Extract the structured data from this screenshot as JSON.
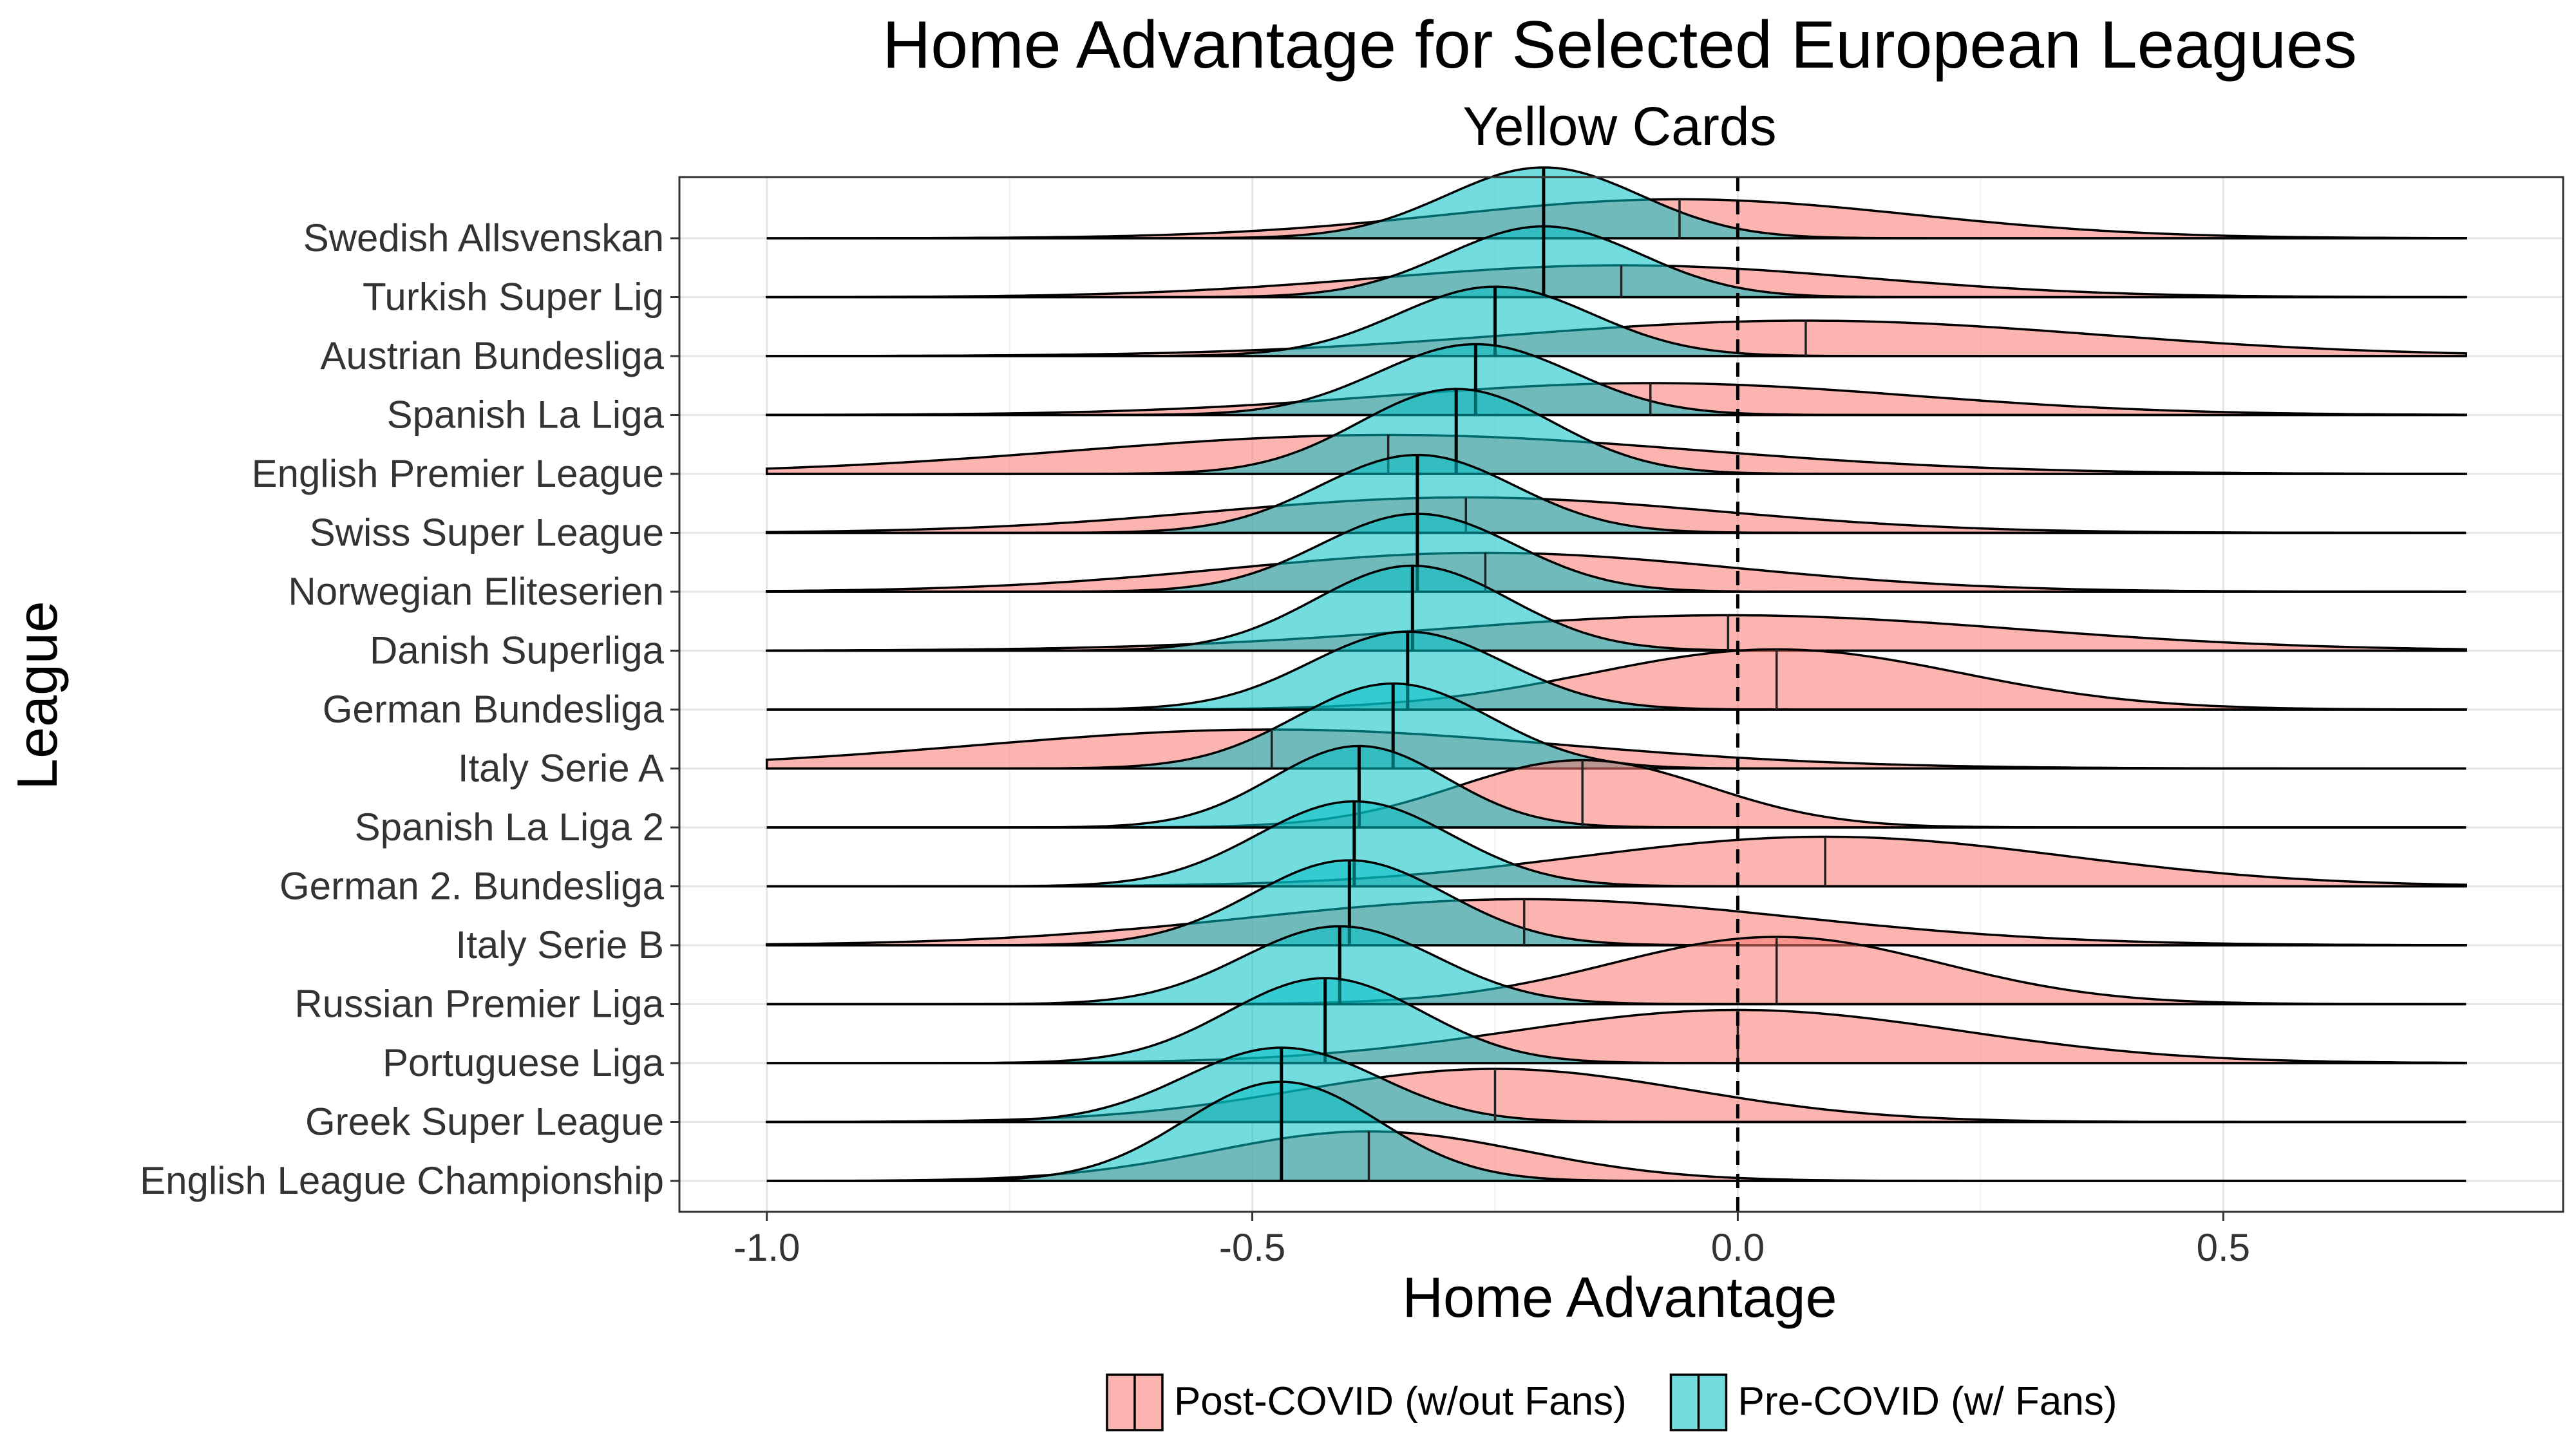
{
  "chart_data": {
    "type": "ridgeline",
    "title": "Home Advantage for Selected European Leagues",
    "subtitle": "Yellow Cards",
    "xlabel": "Home Advantage",
    "ylabel": "League",
    "xlim": [
      -1.09,
      0.85
    ],
    "x_ticks": [
      {
        "value": -1.0,
        "label": "-1.0"
      },
      {
        "value": -0.5,
        "label": "-0.5"
      },
      {
        "value": 0.0,
        "label": "0.0"
      },
      {
        "value": 0.5,
        "label": "0.5"
      }
    ],
    "reference_line": 0.0,
    "grid": true,
    "legend_position": "bottom",
    "series_styles": [
      {
        "key": "post",
        "name": "Post-COVID (w/out Fans)",
        "color": "#F8766D"
      },
      {
        "key": "pre",
        "name": "Pre-COVID (w/ Fans)",
        "color": "#00BFC4"
      }
    ],
    "leagues": [
      {
        "name": "Swedish Allsvenskan",
        "pre": {
          "mean": -0.2,
          "sd": 0.1,
          "peak": 1.0
        },
        "post": {
          "mean": -0.06,
          "sd": 0.24,
          "peak": 0.55
        }
      },
      {
        "name": "Turkish Super Lig",
        "pre": {
          "mean": -0.2,
          "sd": 0.1,
          "peak": 1.0
        },
        "post": {
          "mean": -0.12,
          "sd": 0.25,
          "peak": 0.45
        }
      },
      {
        "name": "Austrian Bundesliga",
        "pre": {
          "mean": -0.25,
          "sd": 0.1,
          "peak": 0.98
        },
        "post": {
          "mean": 0.07,
          "sd": 0.3,
          "peak": 0.5
        }
      },
      {
        "name": "Spanish La Liga",
        "pre": {
          "mean": -0.27,
          "sd": 0.1,
          "peak": 1.0
        },
        "post": {
          "mean": -0.09,
          "sd": 0.27,
          "peak": 0.45
        }
      },
      {
        "name": "English Premier League",
        "pre": {
          "mean": -0.29,
          "sd": 0.1,
          "peak": 1.2
        },
        "post": {
          "mean": -0.36,
          "sd": 0.32,
          "peak": 0.55
        }
      },
      {
        "name": "Swiss Super League",
        "pre": {
          "mean": -0.33,
          "sd": 0.1,
          "peak": 1.1
        },
        "post": {
          "mean": -0.28,
          "sd": 0.26,
          "peak": 0.5
        }
      },
      {
        "name": "Norwegian Eliteserien",
        "pre": {
          "mean": -0.33,
          "sd": 0.1,
          "peak": 1.1
        },
        "post": {
          "mean": -0.26,
          "sd": 0.26,
          "peak": 0.55
        }
      },
      {
        "name": "Danish Superliga",
        "pre": {
          "mean": -0.335,
          "sd": 0.1,
          "peak": 1.2
        },
        "post": {
          "mean": -0.01,
          "sd": 0.3,
          "peak": 0.5
        }
      },
      {
        "name": "German Bundesliga",
        "pre": {
          "mean": -0.34,
          "sd": 0.1,
          "peak": 1.1
        },
        "post": {
          "mean": 0.04,
          "sd": 0.19,
          "peak": 0.85
        }
      },
      {
        "name": "Italy Serie A",
        "pre": {
          "mean": -0.355,
          "sd": 0.1,
          "peak": 1.2
        },
        "post": {
          "mean": -0.48,
          "sd": 0.3,
          "peak": 0.55
        }
      },
      {
        "name": "Spanish La Liga 2",
        "pre": {
          "mean": -0.39,
          "sd": 0.09,
          "peak": 1.15
        },
        "post": {
          "mean": -0.16,
          "sd": 0.13,
          "peak": 0.95
        }
      },
      {
        "name": "German 2. Bundesliga",
        "pre": {
          "mean": -0.395,
          "sd": 0.1,
          "peak": 1.2
        },
        "post": {
          "mean": 0.09,
          "sd": 0.25,
          "peak": 0.7
        }
      },
      {
        "name": "Italy Serie B",
        "pre": {
          "mean": -0.4,
          "sd": 0.1,
          "peak": 1.2
        },
        "post": {
          "mean": -0.22,
          "sd": 0.28,
          "peak": 0.65
        }
      },
      {
        "name": "Russian Premier Liga",
        "pre": {
          "mean": -0.41,
          "sd": 0.1,
          "peak": 1.1
        },
        "post": {
          "mean": 0.04,
          "sd": 0.17,
          "peak": 0.95
        }
      },
      {
        "name": "Portuguese Liga",
        "pre": {
          "mean": -0.425,
          "sd": 0.1,
          "peak": 1.2
        },
        "post": {
          "mean": 0.0,
          "sd": 0.23,
          "peak": 0.75
        }
      },
      {
        "name": "Greek Super League",
        "pre": {
          "mean": -0.47,
          "sd": 0.1,
          "peak": 1.05
        },
        "post": {
          "mean": -0.25,
          "sd": 0.2,
          "peak": 0.75
        }
      },
      {
        "name": "English League Championship",
        "pre": {
          "mean": -0.47,
          "sd": 0.1,
          "peak": 1.4
        },
        "post": {
          "mean": -0.38,
          "sd": 0.16,
          "peak": 0.7
        }
      }
    ]
  }
}
